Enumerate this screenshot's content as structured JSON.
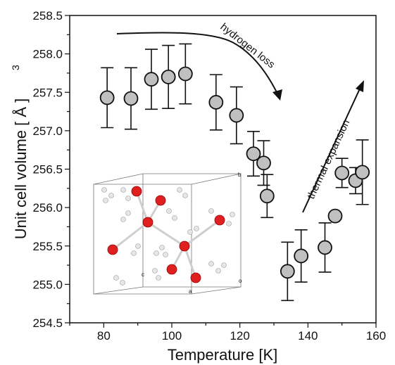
{
  "chart_data": {
    "type": "scatter",
    "xlabel": "Temperature [K]",
    "ylabel": "Unit cell volume [ Å ]",
    "ylabel_superscript": "3",
    "xlim": [
      70,
      160
    ],
    "ylim": [
      254.5,
      258.5
    ],
    "x_ticks": [
      80,
      100,
      120,
      140,
      160
    ],
    "y_ticks": [
      254.5,
      255.0,
      255.5,
      256.0,
      256.5,
      257.0,
      257.5,
      258.0,
      258.5
    ],
    "x_tick_labels": [
      "80",
      "100",
      "120",
      "140",
      "160"
    ],
    "y_tick_labels": [
      "254.5",
      "255.0",
      "255.5",
      "256.0",
      "256.5",
      "257.0",
      "257.5",
      "258.0",
      "258.5"
    ],
    "grid": false,
    "marker_color": "#c0c0c0",
    "series": [
      {
        "x": [
          81,
          88,
          94,
          99,
          104,
          113,
          119,
          124,
          127,
          128,
          134,
          138,
          145,
          148,
          150,
          154,
          156
        ],
        "y": [
          257.43,
          257.42,
          257.67,
          257.7,
          257.74,
          257.37,
          257.2,
          256.7,
          256.58,
          256.15,
          255.17,
          255.37,
          255.48,
          255.89,
          256.45,
          256.35,
          256.46
        ],
        "yerr": [
          0.39,
          0.4,
          0.39,
          0.41,
          0.39,
          0.36,
          0.37,
          0.29,
          0.29,
          0.28,
          0.38,
          0.34,
          0.32,
          0.0,
          0.19,
          0.17,
          0.42
        ]
      }
    ],
    "annotations": [
      {
        "text": "hydrogen loss"
      },
      {
        "text": "thermal expansion"
      }
    ],
    "inset": {
      "description_icon": "crystal-structure-inset",
      "labels": [
        "b",
        "c",
        "a",
        "o"
      ]
    }
  }
}
